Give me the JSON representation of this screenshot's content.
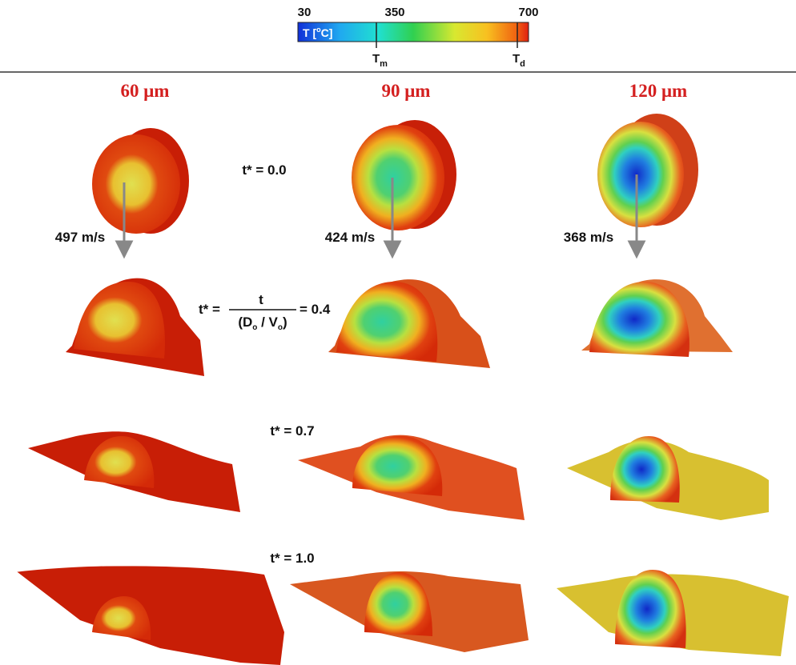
{
  "colorbar": {
    "min_label": "30",
    "mid_label": "350",
    "max_label": "700",
    "title": {
      "before": "T [",
      "superscript": "o",
      "after": "C]"
    },
    "melt_marker": {
      "symbol": "T",
      "subscript": "m"
    },
    "decomp_marker": {
      "symbol": "T",
      "subscript": "d"
    }
  },
  "columns": [
    "60 μm",
    "90 μm",
    "120 μm"
  ],
  "velocities": [
    "497 m/s",
    "424 m/s",
    "368 m/s"
  ],
  "rows": {
    "row0": "t* = 0.0",
    "row1": {
      "lhs": "t* =",
      "numerator": "t",
      "denominator": {
        "open": "(D",
        "sub1": "o",
        "mid": " / V",
        "sub2": "o",
        "close": ")"
      },
      "rhs": "= 0.4"
    },
    "row2": "t* = 0.7",
    "row3": "t* = 1.0"
  }
}
